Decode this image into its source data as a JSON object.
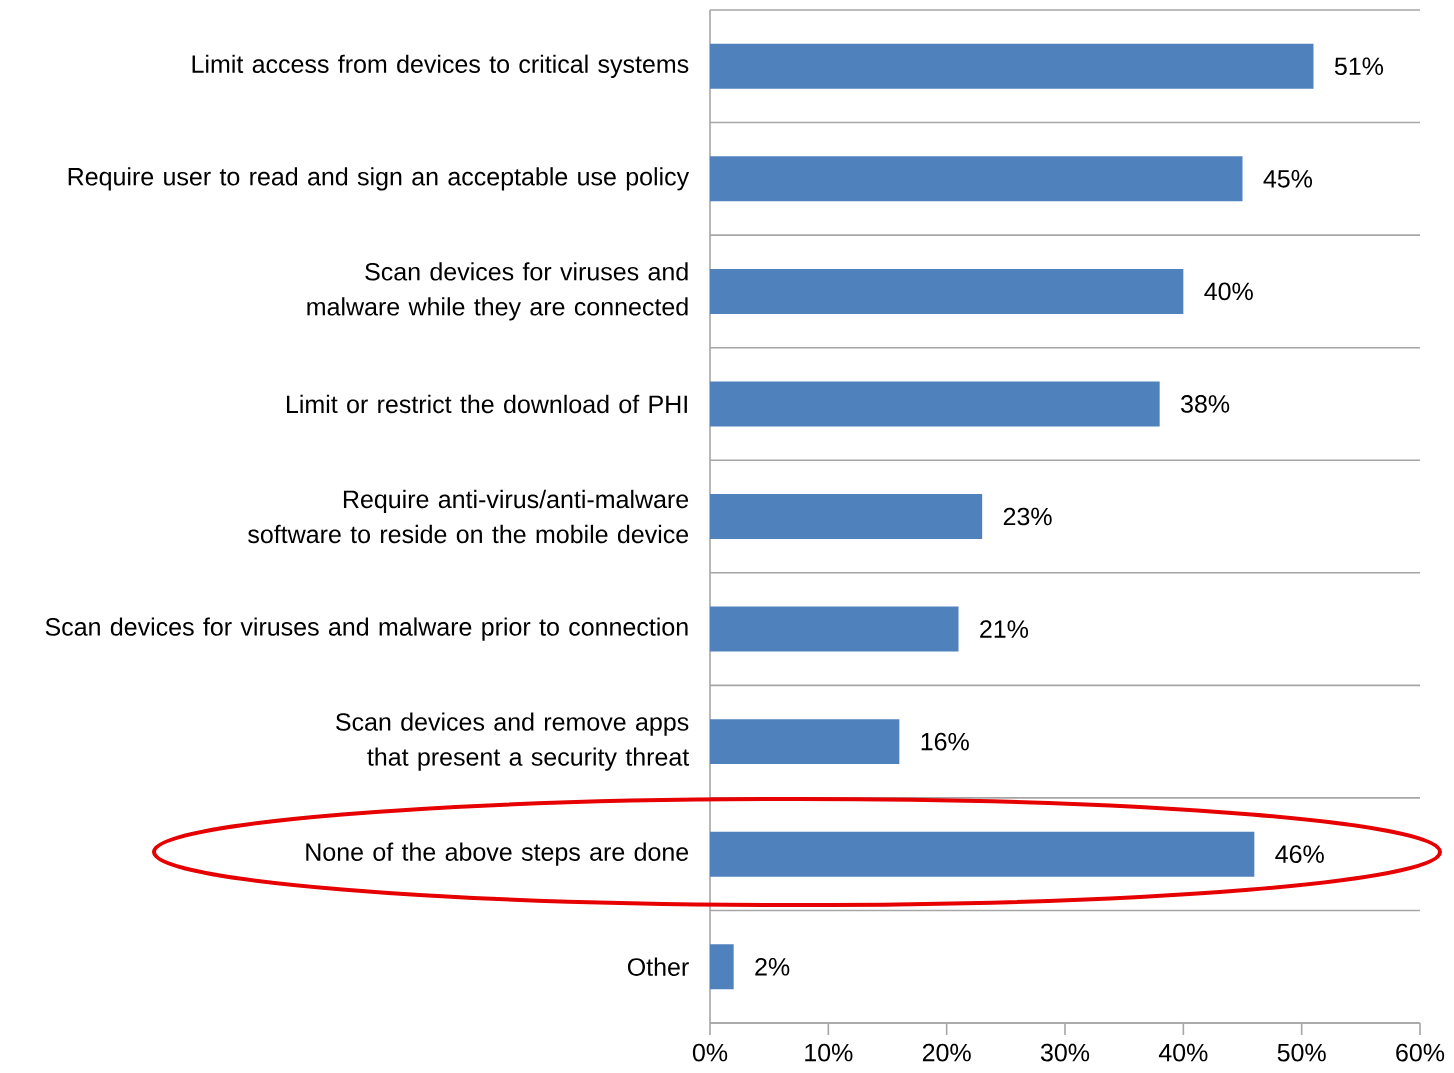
{
  "chart_data": {
    "type": "bar",
    "orientation": "horizontal",
    "categories": [
      "Limit access from devices to critical systems",
      "Require user to read and sign an acceptable use policy",
      "Scan devices for viruses and malware while they are connected",
      "Limit or restrict the download of PHI",
      "Require anti-virus/anti-malware software to reside on the mobile device",
      "Scan devices for viruses and malware prior to connection",
      "Scan devices and remove apps that present a security threat",
      "None of the above steps are done",
      "Other"
    ],
    "values": [
      51,
      45,
      40,
      38,
      23,
      21,
      16,
      46,
      2
    ],
    "value_labels": [
      "51%",
      "45%",
      "40%",
      "38%",
      "23%",
      "21%",
      "16%",
      "46%",
      "2%"
    ],
    "color": "#4f81bd",
    "xlim": [
      0,
      60
    ],
    "xticks": [
      {
        "value": 0,
        "label": "0%"
      },
      {
        "value": 10,
        "label": "10%"
      },
      {
        "value": 20,
        "label": "20%"
      },
      {
        "value": 30,
        "label": "30%"
      },
      {
        "value": 40,
        "label": "40%"
      },
      {
        "value": 50,
        "label": "50%"
      },
      {
        "value": 60,
        "label": "60%"
      }
    ],
    "grid": "y"
  }
}
